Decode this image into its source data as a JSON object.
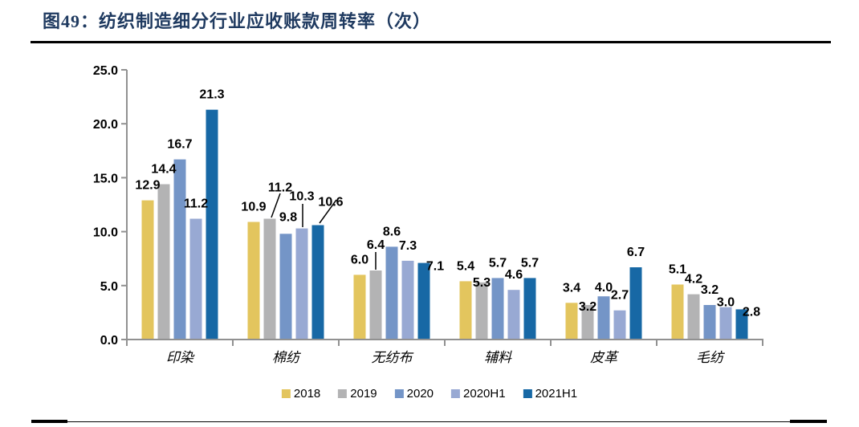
{
  "figure": {
    "title": "图49：纺织制造细分行业应收账款周转率（次）"
  },
  "chart_data": {
    "type": "bar",
    "title": "纺织制造细分行业应收账款周转率（次）",
    "categories": [
      "印染",
      "棉纺",
      "无纺布",
      "辅料",
      "皮革",
      "毛纺"
    ],
    "series": [
      {
        "name": "2018",
        "color": "#E3C55E",
        "values": [
          12.9,
          10.9,
          6.0,
          5.4,
          3.4,
          5.1
        ]
      },
      {
        "name": "2019",
        "color": "#B3B3B4",
        "values": [
          14.4,
          11.2,
          6.4,
          5.3,
          3.2,
          4.2
        ]
      },
      {
        "name": "2020",
        "color": "#7495C7",
        "values": [
          16.7,
          9.8,
          8.6,
          5.7,
          4.0,
          3.2
        ]
      },
      {
        "name": "2020H1",
        "color": "#98A9D3",
        "values": [
          11.2,
          10.3,
          7.3,
          4.6,
          2.7,
          3.0
        ]
      },
      {
        "name": "2021H1",
        "color": "#1768A5",
        "values": [
          21.3,
          10.6,
          7.1,
          5.7,
          6.7,
          2.8
        ]
      }
    ],
    "ylim": [
      0,
      25
    ],
    "ytick_labels": [
      "0.0",
      "5.0",
      "10.0",
      "15.0",
      "20.0",
      "25.0"
    ],
    "xlabel": "",
    "ylabel": "",
    "grid": false,
    "value_labels": true,
    "value_label_decimals": 1,
    "legend_position": "bottom",
    "axis_color": "#919191",
    "text_color": "#000000"
  }
}
